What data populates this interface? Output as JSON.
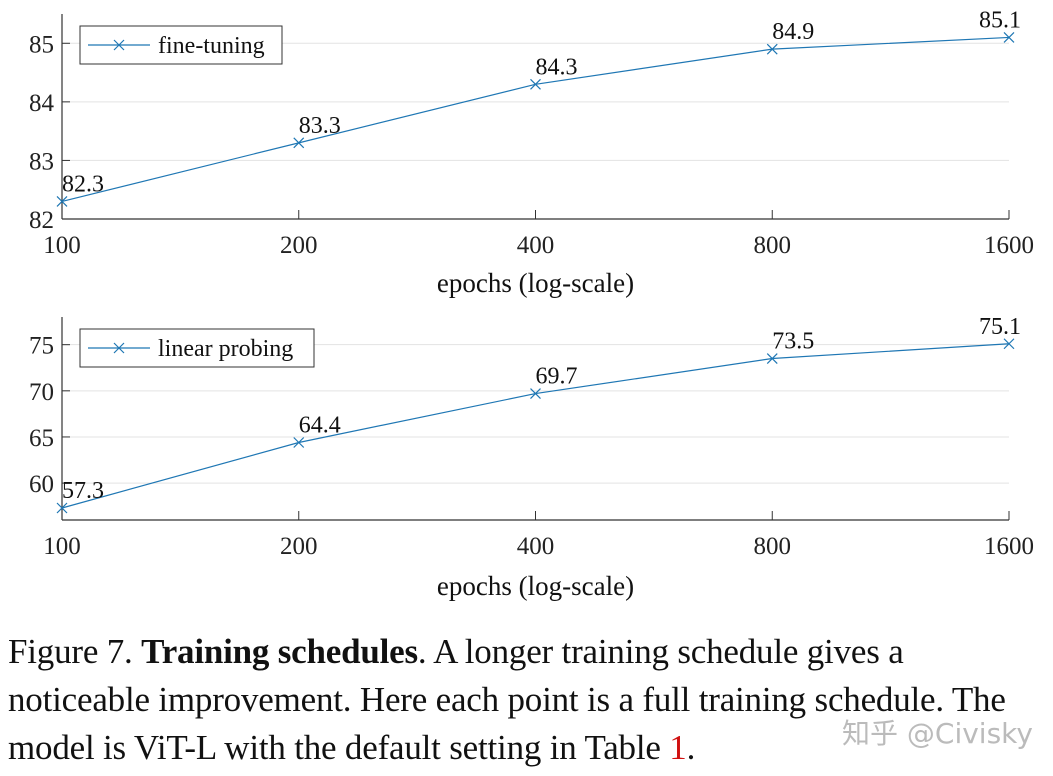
{
  "chart_data": [
    {
      "type": "line",
      "x": [
        100,
        200,
        400,
        800,
        1600
      ],
      "xscale": "log",
      "xticks": [
        "100",
        "200",
        "400",
        "800",
        "1600"
      ],
      "series": [
        {
          "name": "fine-tuning",
          "values": [
            82.3,
            83.3,
            84.3,
            84.9,
            85.1
          ],
          "labels": [
            "82.3",
            "83.3",
            "84.3",
            "84.9",
            "85.1"
          ]
        }
      ],
      "ylim": [
        82,
        85.5
      ],
      "yticks": [
        82,
        83,
        84,
        85
      ],
      "xlabel": "epochs (log-scale)",
      "ylabel": "",
      "grid": "horizontal",
      "legend": "top-left",
      "marker": "x",
      "color": "#1f77b4"
    },
    {
      "type": "line",
      "x": [
        100,
        200,
        400,
        800,
        1600
      ],
      "xscale": "log",
      "xticks": [
        "100",
        "200",
        "400",
        "800",
        "1600"
      ],
      "series": [
        {
          "name": "linear probing",
          "values": [
            57.3,
            64.4,
            69.7,
            73.5,
            75.1
          ],
          "labels": [
            "57.3",
            "64.4",
            "69.7",
            "73.5",
            "75.1"
          ]
        }
      ],
      "ylim": [
        56,
        78
      ],
      "yticks": [
        60,
        65,
        70,
        75
      ],
      "xlabel": "epochs (log-scale)",
      "ylabel": "",
      "grid": "horizontal",
      "legend": "top-left",
      "marker": "x",
      "color": "#1f77b4"
    }
  ],
  "caption": {
    "prefix": "Figure 7. ",
    "bold": "Training schedules",
    "text": ". A longer training schedule gives a noticeable improvement. Here each point is a full training schedule. The model is ViT-L with the default setting in Table ",
    "ref": "1",
    "suffix": "."
  },
  "watermark": "知乎 @Civisky"
}
